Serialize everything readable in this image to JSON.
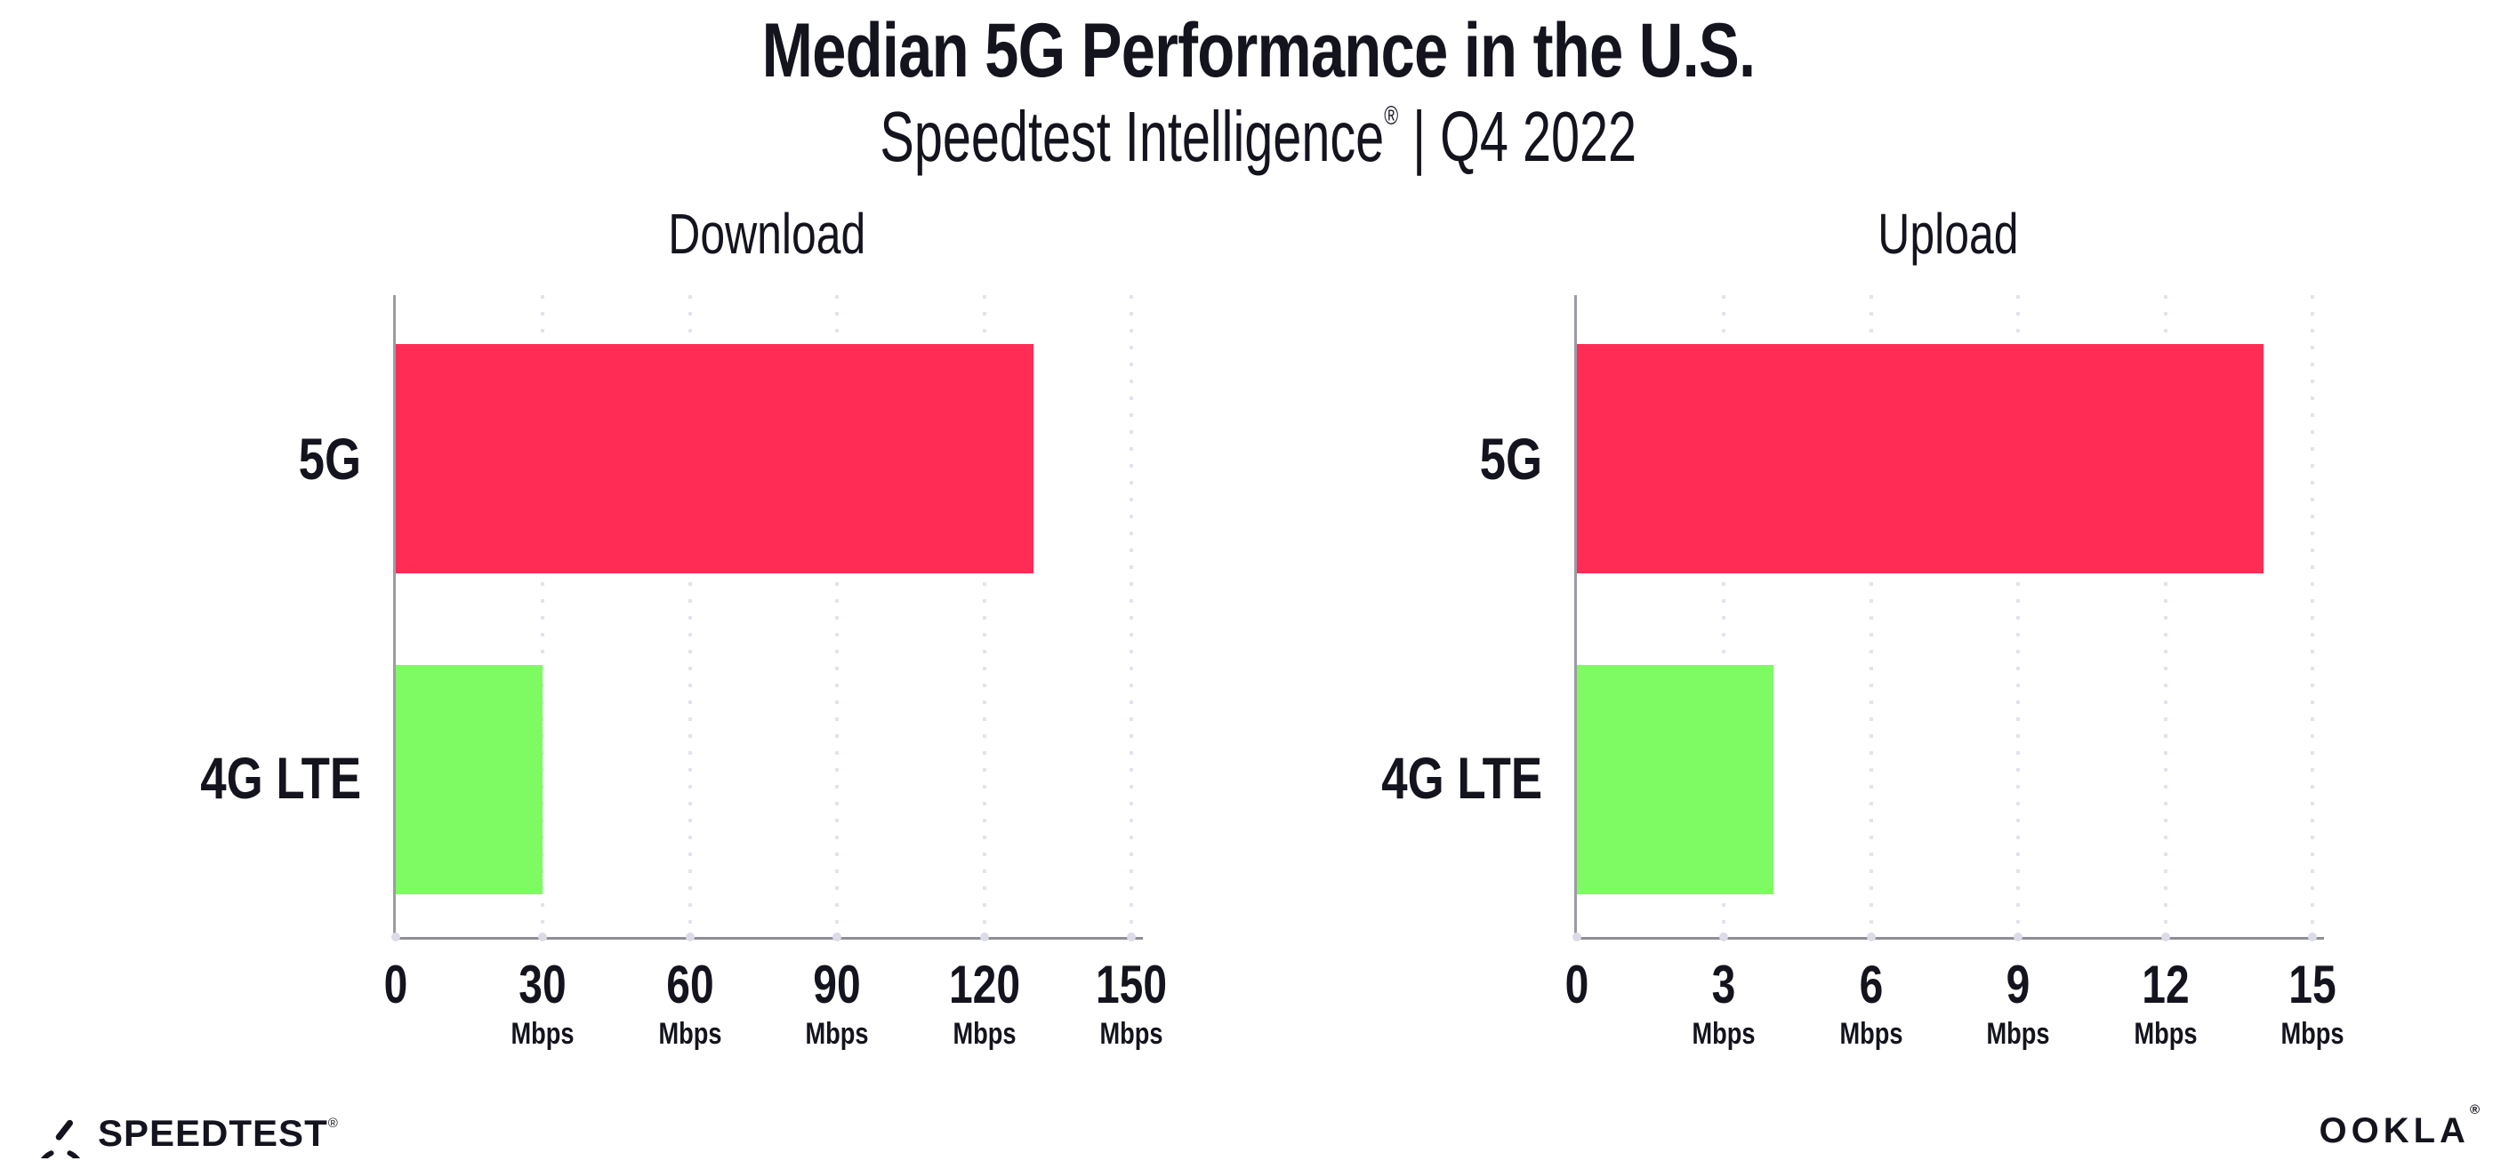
{
  "header": {
    "title": "Median 5G Performance in the U.S.",
    "subtitle_brand": "Speedtest Intelligence",
    "subtitle_reg": "®",
    "subtitle_rest": " | Q4 2022"
  },
  "chart_data": [
    {
      "type": "bar",
      "orientation": "horizontal",
      "title": "Download",
      "categories": [
        "5G",
        "4G LTE"
      ],
      "values": [
        130,
        30
      ],
      "unit": "Mbps",
      "xlim": [
        0,
        150
      ],
      "xticks": [
        0,
        30,
        60,
        90,
        120,
        150
      ],
      "bar_colors": [
        "#FF2D55",
        "#7EFA63"
      ],
      "grid": "vertical-dotted",
      "legend": "none"
    },
    {
      "type": "bar",
      "orientation": "horizontal",
      "title": "Upload",
      "categories": [
        "5G",
        "4G LTE"
      ],
      "values": [
        14,
        4
      ],
      "unit": "Mbps",
      "xlim": [
        0,
        15
      ],
      "xticks": [
        0,
        3,
        6,
        9,
        12,
        15
      ],
      "bar_colors": [
        "#FF2D55",
        "#7EFA63"
      ],
      "grid": "vertical-dotted",
      "legend": "none"
    }
  ],
  "footer": {
    "speedtest_label": "SPEEDTEST",
    "speedtest_reg": "®",
    "ookla_label": "OOKLA",
    "ookla_reg": "®"
  },
  "colors": {
    "bar_5g": "#FF2D55",
    "bar_4g_lte": "#7EFA63",
    "text": "#14141E",
    "gridline": "#E3E3EF",
    "axis_spine": "#9B9BA3",
    "axis_baseline": "#8E8E96",
    "background": "#FFFFFF"
  }
}
